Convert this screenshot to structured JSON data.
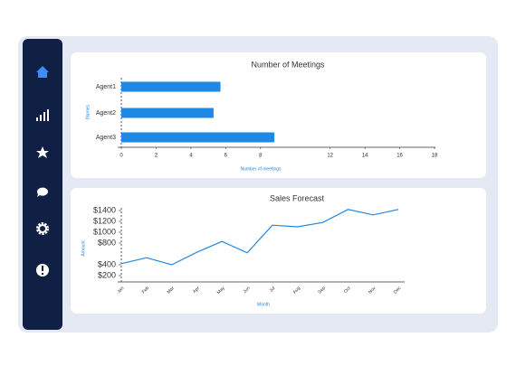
{
  "chart_data": [
    {
      "type": "barh",
      "title": "Number of Meetings",
      "x_label": "Number of meetings",
      "y_label": "Names",
      "categories": [
        "Agent1",
        "Agent2",
        "Agent3"
      ],
      "values": [
        5.7,
        5.3,
        8.8
      ],
      "color": "#1e88e5",
      "xlim": [
        0,
        18
      ],
      "xticks": [
        0,
        2,
        4,
        6,
        8,
        12,
        14,
        16,
        18
      ]
    },
    {
      "type": "line",
      "title": "Sales Forecast",
      "x_label": "Month",
      "y_label": "Amount",
      "categories": [
        "Jan",
        "Feb",
        "Mar",
        "Apr",
        "May",
        "Jun",
        "Jul",
        "Aug",
        "Sep",
        "Oct",
        "Nov",
        "Dec"
      ],
      "values": [
        420,
        530,
        400,
        630,
        830,
        620,
        1130,
        1100,
        1180,
        1420,
        1320,
        1420
      ],
      "color": "#1e88e5",
      "ylim": [
        200,
        1400
      ],
      "yticks": [
        {
          "value": 1400,
          "label": "$1400"
        },
        {
          "value": 1200,
          "label": "$1200"
        },
        {
          "value": 1000,
          "label": "$1000"
        },
        {
          "value": 800,
          "label": "$800"
        },
        {
          "value": 400,
          "label": "$400"
        },
        {
          "value": 200,
          "label": "$200"
        }
      ]
    }
  ]
}
